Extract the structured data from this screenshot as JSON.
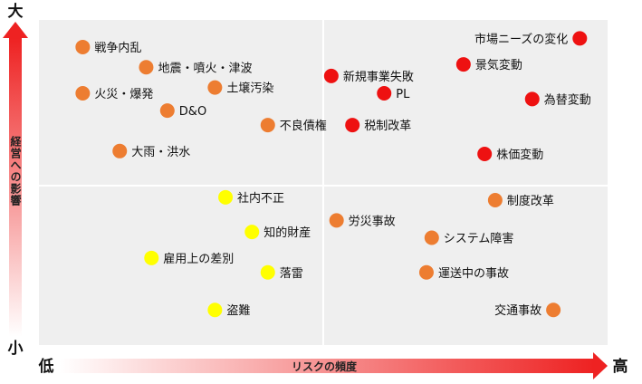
{
  "chart_data": {
    "type": "scatter",
    "title": "",
    "xlabel": "リスクの頻度",
    "ylabel": "経営への影響",
    "x_low_label": "低",
    "x_high_label": "高",
    "y_high_label": "大",
    "y_low_label": "小",
    "xlim": [
      0,
      100
    ],
    "ylim": [
      0,
      100
    ],
    "grid": "quadrants",
    "colors": {
      "red": "#ee1111",
      "orange": "#ed7d31",
      "yellow": "#ffff00",
      "panel": "#efefef",
      "axis_red": "#ee2222"
    },
    "points": [
      {
        "label": "戦争内乱",
        "x": 4,
        "y": 95,
        "color": "orange"
      },
      {
        "label": "地震・噴火・津波",
        "x": 16,
        "y": 88,
        "color": "orange"
      },
      {
        "label": "火災・爆発",
        "x": 4,
        "y": 79,
        "color": "orange"
      },
      {
        "label": "土壌汚染",
        "x": 29,
        "y": 81,
        "color": "orange"
      },
      {
        "label": "D&O",
        "x": 20,
        "y": 73,
        "color": "orange"
      },
      {
        "label": "不良債権",
        "x": 39,
        "y": 68,
        "color": "orange"
      },
      {
        "label": "大雨・洪水",
        "x": 11,
        "y": 59,
        "color": "orange"
      },
      {
        "label": "市場ニーズの変化",
        "x": 98,
        "y": 98,
        "color": "red"
      },
      {
        "label": "景気変動",
        "x": 76,
        "y": 89,
        "color": "red"
      },
      {
        "label": "新規事業失敗",
        "x": 51,
        "y": 85,
        "color": "red"
      },
      {
        "label": "PL",
        "x": 61,
        "y": 79,
        "color": "red"
      },
      {
        "label": "為替変動",
        "x": 89,
        "y": 77,
        "color": "red"
      },
      {
        "label": "税制改革",
        "x": 55,
        "y": 68,
        "color": "red"
      },
      {
        "label": "株価変動",
        "x": 80,
        "y": 58,
        "color": "red"
      },
      {
        "label": "社内不正",
        "x": 31,
        "y": 43,
        "color": "yellow"
      },
      {
        "label": "知的財産",
        "x": 36,
        "y": 31,
        "color": "yellow"
      },
      {
        "label": "雇用上の差別",
        "x": 17,
        "y": 22,
        "color": "yellow"
      },
      {
        "label": "落雷",
        "x": 39,
        "y": 17,
        "color": "yellow"
      },
      {
        "label": "盗難",
        "x": 29,
        "y": 4,
        "color": "yellow"
      },
      {
        "label": "制度改革",
        "x": 82,
        "y": 42,
        "color": "orange"
      },
      {
        "label": "労災事故",
        "x": 52,
        "y": 35,
        "color": "orange"
      },
      {
        "label": "システム障害",
        "x": 70,
        "y": 29,
        "color": "orange"
      },
      {
        "label": "運送中の事故",
        "x": 69,
        "y": 17,
        "color": "orange"
      },
      {
        "label": "交通事故",
        "x": 93,
        "y": 4,
        "color": "orange"
      }
    ]
  }
}
